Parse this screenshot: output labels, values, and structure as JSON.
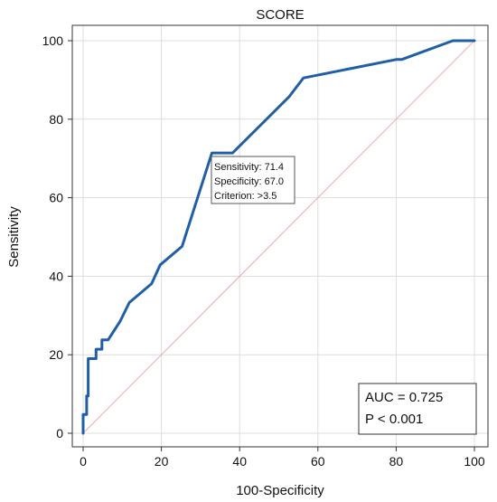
{
  "chart_data": {
    "type": "line",
    "title": "SCORE",
    "xlabel": "100-Specificity",
    "ylabel": "Sensitivity",
    "xlim": [
      0,
      100
    ],
    "ylim": [
      0,
      100
    ],
    "x_ticks": [
      0,
      20,
      40,
      60,
      80,
      100
    ],
    "y_ticks": [
      0,
      20,
      40,
      60,
      80,
      100
    ],
    "grid": true,
    "series": [
      {
        "color": "#1f5fa6",
        "x": [
          0,
          0,
          0.9,
          0.9,
          1.3,
          1.3,
          3.3,
          3.3,
          4.8,
          4.8,
          6.4,
          9.5,
          11.8,
          17.5,
          19.7,
          25.3,
          32.9,
          38.2,
          52.6,
          56.3,
          80,
          81.4,
          94.5,
          100
        ],
        "y": [
          0,
          4.8,
          4.8,
          9.5,
          9.5,
          19,
          19,
          21.4,
          21.4,
          23.8,
          23.8,
          28.6,
          33.3,
          38.1,
          42.9,
          47.6,
          71.4,
          71.4,
          85.7,
          90.5,
          95.2,
          95.2,
          100,
          100
        ]
      },
      {
        "type": "reference",
        "color": "#f2a8a8",
        "x": [
          0,
          100
        ],
        "y": [
          0,
          100
        ]
      }
    ],
    "cutoff_point": {
      "x": 33,
      "y": 71.4
    },
    "annotations": {
      "cutoff_lines": [
        "Sensitivity: 71.4",
        "Specificity: 67.0",
        "Criterion: >3.5"
      ],
      "stats_lines": [
        "AUC = 0.725",
        "P < 0.001"
      ]
    }
  },
  "colors": {
    "curve": "#1f5fa6",
    "reference": "#f2a8a8",
    "grid": "#dddddd",
    "axis": "#333333"
  }
}
